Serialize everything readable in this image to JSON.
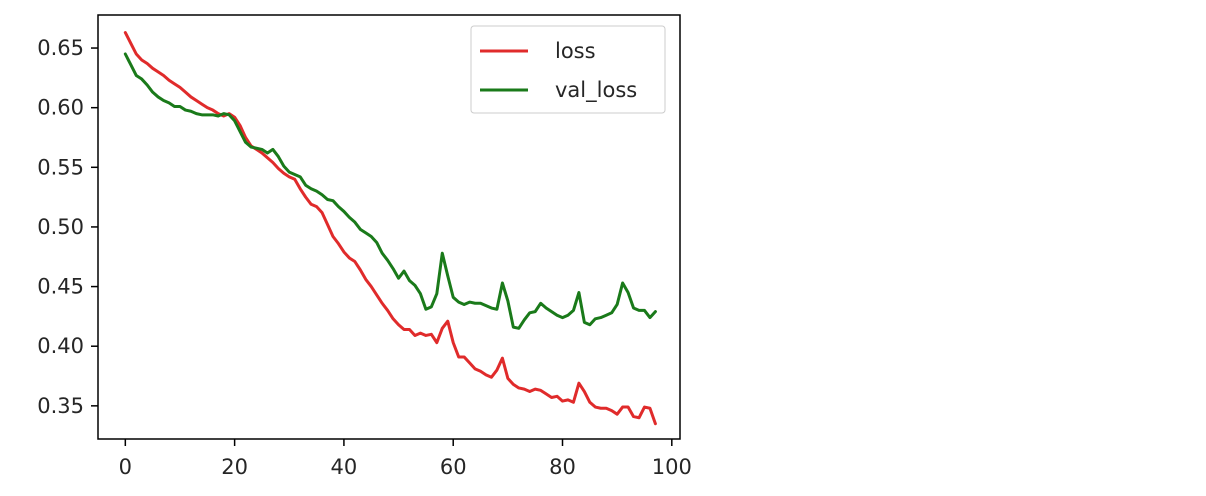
{
  "colors": {
    "loss": "#e02b2b",
    "val_loss": "#1a7a1a",
    "axis": "#000000",
    "legend_border": "#cccccc"
  },
  "chart_data": {
    "type": "line",
    "title": "",
    "xlabel": "",
    "ylabel": "",
    "xlim": [
      -5,
      101.5
    ],
    "ylim": [
      0.3222,
      0.6777
    ],
    "xticks": [
      0,
      20,
      40,
      60,
      80,
      100
    ],
    "xtick_labels": [
      "0",
      "20",
      "40",
      "60",
      "80",
      "100"
    ],
    "yticks": [
      0.35,
      0.4,
      0.45,
      0.5,
      0.55,
      0.6,
      0.65
    ],
    "ytick_labels": [
      "0.35",
      "0.40",
      "0.45",
      "0.50",
      "0.55",
      "0.60",
      "0.65"
    ],
    "grid": false,
    "legend_position": "top-right",
    "series": [
      {
        "name": "loss",
        "color_key": "loss",
        "x": [
          0,
          1,
          2,
          3,
          4,
          5,
          6,
          7,
          8,
          9,
          10,
          11,
          12,
          13,
          14,
          15,
          16,
          17,
          18,
          19,
          20,
          21,
          22,
          23,
          24,
          25,
          26,
          27,
          28,
          29,
          30,
          31,
          32,
          33,
          34,
          35,
          36,
          37,
          38,
          39,
          40,
          41,
          42,
          43,
          44,
          45,
          46,
          47,
          48,
          49,
          50,
          51,
          52,
          53,
          54,
          55,
          56,
          57,
          58,
          59,
          60,
          61,
          62,
          63,
          64,
          65,
          66,
          67,
          68,
          69,
          70,
          71,
          72,
          73,
          74,
          75,
          76,
          77,
          78,
          79,
          80,
          81,
          82,
          83,
          84,
          85,
          86,
          87,
          88,
          89,
          90,
          91,
          92,
          93,
          94,
          95,
          96,
          97
        ],
        "values": [
          0.663,
          0.654,
          0.645,
          0.64,
          0.637,
          0.633,
          0.63,
          0.627,
          0.623,
          0.62,
          0.617,
          0.613,
          0.609,
          0.606,
          0.603,
          0.6,
          0.598,
          0.595,
          0.593,
          0.595,
          0.592,
          0.585,
          0.575,
          0.568,
          0.565,
          0.562,
          0.558,
          0.554,
          0.549,
          0.545,
          0.542,
          0.54,
          0.532,
          0.525,
          0.519,
          0.517,
          0.512,
          0.502,
          0.492,
          0.486,
          0.479,
          0.474,
          0.471,
          0.464,
          0.456,
          0.45,
          0.443,
          0.436,
          0.43,
          0.423,
          0.418,
          0.414,
          0.414,
          0.409,
          0.411,
          0.409,
          0.41,
          0.403,
          0.415,
          0.421,
          0.403,
          0.391,
          0.391,
          0.386,
          0.381,
          0.379,
          0.376,
          0.374,
          0.38,
          0.39,
          0.373,
          0.368,
          0.365,
          0.364,
          0.362,
          0.364,
          0.363,
          0.36,
          0.357,
          0.358,
          0.354,
          0.355,
          0.353,
          0.369,
          0.362,
          0.353,
          0.349,
          0.348,
          0.348,
          0.346,
          0.343,
          0.349,
          0.349,
          0.341,
          0.34,
          0.349,
          0.348,
          0.335
        ]
      },
      {
        "name": "val_loss",
        "color_key": "val_loss",
        "x": [
          0,
          1,
          2,
          3,
          4,
          5,
          6,
          7,
          8,
          9,
          10,
          11,
          12,
          13,
          14,
          15,
          16,
          17,
          18,
          19,
          20,
          21,
          22,
          23,
          24,
          25,
          26,
          27,
          28,
          29,
          30,
          31,
          32,
          33,
          34,
          35,
          36,
          37,
          38,
          39,
          40,
          41,
          42,
          43,
          44,
          45,
          46,
          47,
          48,
          49,
          50,
          51,
          52,
          53,
          54,
          55,
          56,
          57,
          58,
          59,
          60,
          61,
          62,
          63,
          64,
          65,
          66,
          67,
          68,
          69,
          70,
          71,
          72,
          73,
          74,
          75,
          76,
          77,
          78,
          79,
          80,
          81,
          82,
          83,
          84,
          85,
          86,
          87,
          88,
          89,
          90,
          91,
          92,
          93,
          94,
          95,
          96,
          97
        ],
        "values": [
          0.645,
          0.636,
          0.627,
          0.624,
          0.619,
          0.613,
          0.609,
          0.606,
          0.604,
          0.601,
          0.601,
          0.598,
          0.597,
          0.595,
          0.594,
          0.594,
          0.594,
          0.593,
          0.595,
          0.594,
          0.589,
          0.58,
          0.571,
          0.567,
          0.566,
          0.565,
          0.562,
          0.565,
          0.559,
          0.551,
          0.546,
          0.544,
          0.542,
          0.535,
          0.532,
          0.53,
          0.527,
          0.523,
          0.522,
          0.517,
          0.513,
          0.508,
          0.504,
          0.498,
          0.495,
          0.492,
          0.487,
          0.478,
          0.472,
          0.465,
          0.457,
          0.463,
          0.455,
          0.451,
          0.444,
          0.431,
          0.433,
          0.444,
          0.478,
          0.459,
          0.441,
          0.437,
          0.435,
          0.437,
          0.436,
          0.436,
          0.434,
          0.432,
          0.431,
          0.453,
          0.438,
          0.416,
          0.415,
          0.422,
          0.428,
          0.429,
          0.436,
          0.432,
          0.429,
          0.426,
          0.424,
          0.426,
          0.43,
          0.445,
          0.42,
          0.418,
          0.423,
          0.424,
          0.426,
          0.428,
          0.435,
          0.453,
          0.445,
          0.432,
          0.43,
          0.43,
          0.424,
          0.429
        ]
      }
    ]
  }
}
